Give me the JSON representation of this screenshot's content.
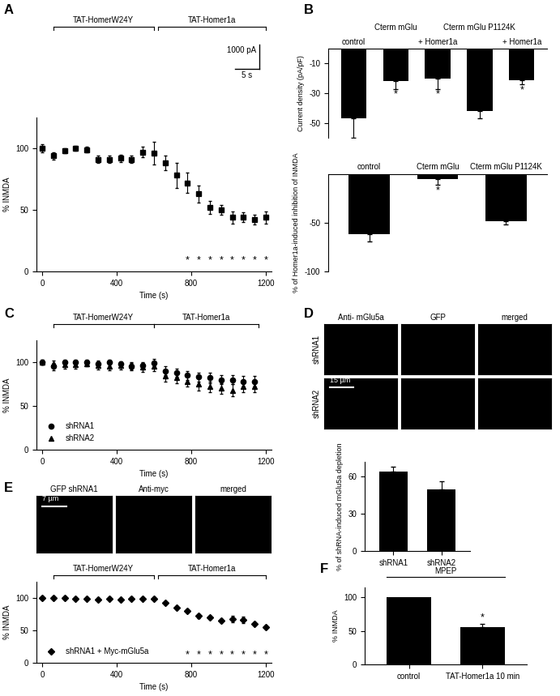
{
  "chart_data": [
    {
      "panel": "A",
      "type": "line",
      "x": [
        0,
        60,
        120,
        180,
        240,
        300,
        360,
        420,
        480,
        540,
        600,
        660,
        720,
        780,
        840,
        900,
        960,
        1020,
        1080,
        1140,
        1200
      ],
      "series": [
        {
          "color": "#000000",
          "marker": "square",
          "line_style": "none",
          "values": [
            100,
            94,
            98,
            100,
            99,
            91,
            91,
            92,
            91,
            97,
            96,
            88,
            78,
            72,
            63,
            52,
            50,
            44,
            44,
            42,
            44
          ],
          "errors": [
            3,
            3,
            2,
            2,
            2,
            3,
            3,
            3,
            3,
            4,
            9,
            6,
            10,
            8,
            7,
            5,
            4,
            5,
            4,
            4,
            5
          ],
          "significant": [
            false,
            false,
            false,
            false,
            false,
            false,
            false,
            false,
            false,
            false,
            false,
            false,
            false,
            true,
            true,
            true,
            true,
            true,
            true,
            true,
            true
          ]
        }
      ],
      "significance_mark": "*",
      "treatments": [
        {
          "label": "TAT-HomerW24Y",
          "start": 60,
          "end": 600
        },
        {
          "label": "TAT-Homer1a",
          "start": 620,
          "end": 1200
        }
      ],
      "scale_bar": {
        "current": "1000 pA",
        "time": "5 s"
      },
      "xlabel": "Time (s)",
      "ylabel": "% INMDA",
      "xlim": [
        -30,
        1230
      ],
      "ylim": [
        0,
        125
      ],
      "xticks": [
        0,
        400,
        800,
        1200
      ],
      "yticks": [
        0,
        50,
        100
      ]
    },
    {
      "panel": "B",
      "type": "bar",
      "categories": [
        "control",
        "Cterm mGlu",
        "+ Homer1a",
        "Cterm mGlu P1124K",
        "+ Homer1a"
      ],
      "values": [
        -47,
        -22,
        -20,
        -42,
        -21
      ],
      "errors": [
        13,
        5,
        7,
        5,
        3
      ],
      "significant": [
        false,
        true,
        true,
        false,
        true
      ],
      "significance_mark": "*",
      "color": "#000000",
      "ylabel": "Current density (pA/pF)",
      "ylim": [
        -60,
        0
      ],
      "yticks": [
        -10,
        -30,
        -50
      ]
    },
    {
      "type": "bar",
      "categories": [
        "control",
        "Cterm mGlu",
        "Cterm mGlu P1124K"
      ],
      "values": [
        -62,
        -5,
        -48
      ],
      "errors": [
        7,
        6,
        4
      ],
      "significant": [
        false,
        true,
        false
      ],
      "significance_mark": "*",
      "color": "#000000",
      "ylabel": "% of Homer1a-induced inhibition of INMDA",
      "ylim": [
        -100,
        0
      ],
      "yticks": [
        -100,
        -50
      ]
    },
    {
      "panel": "C",
      "type": "line",
      "x": [
        0,
        60,
        120,
        180,
        240,
        300,
        360,
        420,
        480,
        540,
        600,
        660,
        720,
        780,
        840,
        900,
        960,
        1020,
        1080,
        1140
      ],
      "series": [
        {
          "name": "shRNA1",
          "color": "#000000",
          "marker": "circle",
          "line_style": "none",
          "values": [
            100,
            95,
            100,
            100,
            100,
            98,
            100,
            98,
            95,
            96,
            99,
            90,
            88,
            85,
            83,
            82,
            80,
            80,
            78,
            78
          ],
          "errors": [
            3,
            4,
            3,
            3,
            3,
            4,
            3,
            3,
            4,
            4,
            5,
            5,
            5,
            5,
            5,
            6,
            5,
            5,
            6,
            6
          ]
        },
        {
          "name": "shRNA2",
          "color": "#000000",
          "marker": "triangle",
          "line_style": "none",
          "values": [
            100,
            98,
            97,
            97,
            98,
            96,
            95,
            96,
            96,
            94,
            95,
            84,
            82,
            78,
            75,
            72,
            70,
            68,
            72,
            72
          ],
          "errors": [
            3,
            4,
            4,
            4,
            3,
            4,
            4,
            4,
            4,
            5,
            5,
            6,
            6,
            6,
            7,
            6,
            6,
            7,
            6,
            6
          ]
        }
      ],
      "legend": "lower left",
      "treatments": [
        {
          "label": "TAT-HomerW24Y",
          "start": 60,
          "end": 600
        },
        {
          "label": "TAT-Homer1a",
          "start": 600,
          "end": 1160
        }
      ],
      "xlabel": "Time (s)",
      "ylabel": "% INMDA",
      "xlim": [
        -30,
        1230
      ],
      "ylim": [
        0,
        125
      ],
      "xticks": [
        0,
        400,
        800,
        1200
      ],
      "yticks": [
        0,
        50,
        100
      ]
    },
    {
      "type": "bar",
      "categories": [
        "shRNA1",
        "shRNA2"
      ],
      "values": [
        64,
        50
      ],
      "errors": [
        4,
        6
      ],
      "color": "#000000",
      "ylabel": "% of shRNA-induced mGlu5a depletion",
      "ylim": [
        0,
        72
      ],
      "yticks": [
        0,
        30,
        60
      ]
    },
    {
      "type": "line",
      "x": [
        0,
        60,
        120,
        180,
        240,
        300,
        360,
        420,
        480,
        540,
        600,
        660,
        720,
        780,
        840,
        900,
        960,
        1020,
        1080,
        1140,
        1200
      ],
      "series": [
        {
          "name": "shRNA1 + Myc-mGlu5a",
          "color": "#000000",
          "marker": "diamond",
          "line_style": "none",
          "values": [
            100,
            100,
            100,
            99,
            99,
            98,
            99,
            97,
            99,
            99,
            99,
            92,
            85,
            80,
            72,
            70,
            65,
            68,
            66,
            60,
            55
          ],
          "errors": [
            2,
            2,
            2,
            2,
            2,
            2,
            2,
            2,
            2,
            2,
            2,
            2,
            3,
            3,
            3,
            3,
            3,
            5,
            5,
            3,
            3
          ],
          "significant": [
            false,
            false,
            false,
            false,
            false,
            false,
            false,
            false,
            false,
            false,
            false,
            false,
            false,
            true,
            true,
            true,
            true,
            true,
            true,
            true,
            true
          ]
        }
      ],
      "significance_mark": "*",
      "legend": "lower left",
      "treatments": [
        {
          "label": "TAT-HomerW24Y",
          "start": 60,
          "end": 600
        },
        {
          "label": "TAT-Homer1a",
          "start": 620,
          "end": 1200
        }
      ],
      "xlabel": "Time (s)",
      "ylabel": "% INMDA",
      "xlim": [
        -30,
        1230
      ],
      "ylim": [
        0,
        125
      ],
      "xticks": [
        0,
        400,
        800,
        1200
      ],
      "yticks": [
        0,
        50,
        100
      ]
    },
    {
      "panel": "F",
      "type": "bar",
      "categories": [
        "control",
        "TAT-Homer1a 10 min"
      ],
      "values": [
        100,
        56
      ],
      "errors": [
        null,
        5
      ],
      "significant": [
        false,
        true
      ],
      "significance_mark": "*",
      "group_label": "MPEP",
      "color": "#000000",
      "ylabel": "% INMDA",
      "ylim": [
        0,
        115
      ],
      "yticks": [
        0,
        50,
        100
      ]
    }
  ],
  "images": [
    {
      "panel": "D",
      "columns": [
        "Anti- mGlu5a",
        "GFP",
        "merged"
      ],
      "rows": [
        "shRNA1",
        "shRNA2"
      ],
      "scale_bar": "15 µm"
    },
    {
      "panel": "E",
      "columns": [
        "GFP shRNA1",
        "Anti-myc",
        "merged"
      ],
      "scale_bar": "7 µm"
    }
  ]
}
